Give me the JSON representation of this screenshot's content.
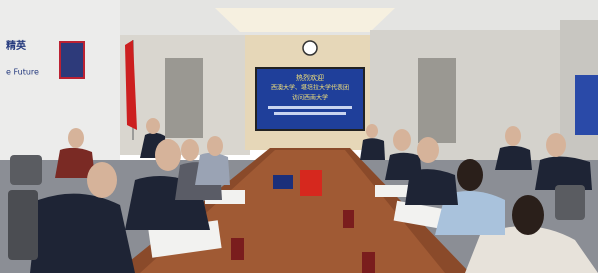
{
  "wall_sign": {
    "chinese": "精英",
    "english": "e Future"
  },
  "screen": {
    "lines": [
      "热烈欢迎",
      "西澳大学、堪培拉大学代表团",
      "访问西南大学"
    ]
  }
}
